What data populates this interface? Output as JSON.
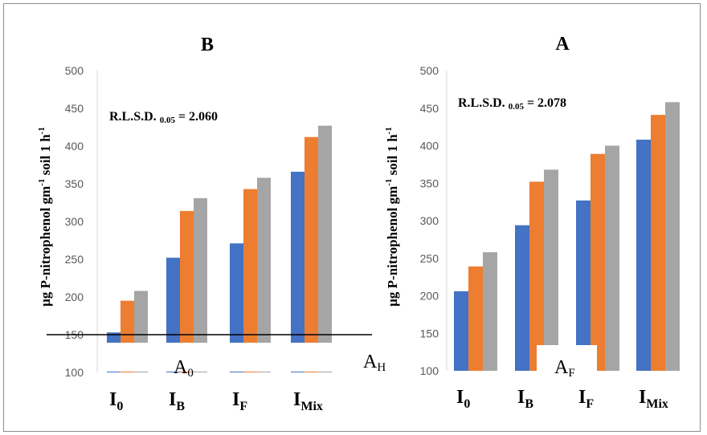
{
  "chart_data": [
    {
      "type": "bar",
      "title": "B",
      "ylabel": {
        "text": "μg P-nitrophenol gm",
        "sup1": "-1",
        "mid": " soil 1 h",
        "sup2": "-1"
      },
      "ylim": [
        100,
        500
      ],
      "yticks": [
        "100",
        "150",
        "200",
        "250",
        "300",
        "350",
        "400",
        "450",
        "500"
      ],
      "categories": [
        {
          "main": "I",
          "sub": "0"
        },
        {
          "main": "I",
          "sub": "B"
        },
        {
          "main": "I",
          "sub": "F"
        },
        {
          "main": "I",
          "sub": "Mix"
        }
      ],
      "series": [
        {
          "color": "#4472c4",
          "values": [
            153,
            252,
            271,
            366
          ]
        },
        {
          "color": "#ed7d31",
          "values": [
            195,
            314,
            343,
            412
          ]
        },
        {
          "color": "#a5a5a5",
          "values": [
            208,
            331,
            358,
            427
          ]
        }
      ],
      "annotation": {
        "main": "R.L.S.D. ",
        "sub": "0.05",
        "tail": " = 2.060"
      },
      "overlay_labels": [
        {
          "main": "A",
          "sub": "0"
        },
        {
          "main": "A",
          "sub": "H"
        }
      ],
      "grid": false
    },
    {
      "type": "bar",
      "title": "A",
      "ylabel": {
        "text": "μg P-nitrophenol gm",
        "sup1": "-1",
        "mid": " soil 1 h",
        "sup2": "-1"
      },
      "ylim": [
        100,
        500
      ],
      "yticks": [
        "100",
        "150",
        "200",
        "250",
        "300",
        "350",
        "400",
        "450",
        "500"
      ],
      "categories": [
        {
          "main": "I",
          "sub": "0"
        },
        {
          "main": "I",
          "sub": "B"
        },
        {
          "main": "I",
          "sub": "F"
        },
        {
          "main": "I",
          "sub": "Mix"
        }
      ],
      "series": [
        {
          "color": "#4472c4",
          "values": [
            206,
            294,
            327,
            408
          ]
        },
        {
          "color": "#ed7d31",
          "values": [
            239,
            352,
            389,
            441
          ]
        },
        {
          "color": "#a5a5a5",
          "values": [
            258,
            368,
            400,
            458
          ]
        }
      ],
      "annotation": {
        "main": "R.L.S.D. ",
        "sub": "0.05",
        "tail": " = 2.078"
      },
      "overlay_labels": [
        {
          "main": "A",
          "sub": "F"
        }
      ],
      "grid": false
    }
  ]
}
